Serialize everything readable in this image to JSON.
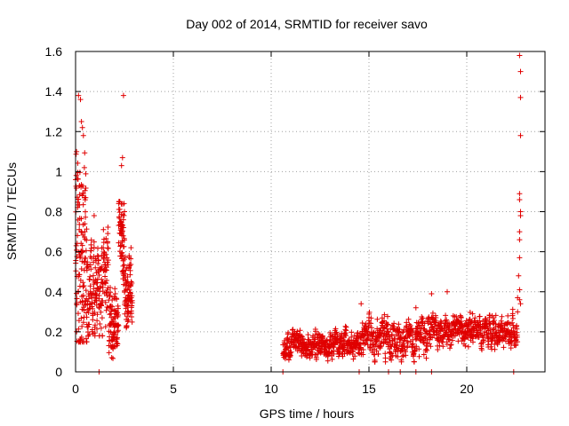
{
  "chart_data": {
    "type": "scatter",
    "title": "Day 002 of 2014, SRMTID for receiver savo",
    "xlabel": "GPS time / hours",
    "ylabel": "SRMTID / TECUs",
    "xlim": [
      0,
      24
    ],
    "ylim": [
      0,
      1.6
    ],
    "grid": true,
    "marker": "+",
    "marker_color": "#e00000",
    "xticks": [
      0,
      5,
      10,
      15,
      20
    ],
    "xtick_labels": [
      "0",
      "5",
      "10",
      "15",
      "20"
    ],
    "yticks": [
      0,
      0.2,
      0.4,
      0.6,
      0.8,
      1.0,
      1.2,
      1.4,
      1.6
    ],
    "ytick_labels": [
      "0",
      "0.2",
      "0.4",
      "0.6",
      "0.8",
      "1",
      "1.2",
      "1.4",
      "1.6"
    ],
    "seed": 2014,
    "segments": [
      {
        "x_start": 0.0,
        "x_end": 0.6,
        "n": 140,
        "base": 0.55,
        "spread": 0.45,
        "min": 0.15,
        "max": 1.38
      },
      {
        "x_start": 0.6,
        "x_end": 1.7,
        "n": 180,
        "base": 0.4,
        "spread": 0.18,
        "min": 0.18,
        "max": 0.78
      },
      {
        "x_start": 1.7,
        "x_end": 2.2,
        "n": 90,
        "base": 0.22,
        "spread": 0.12,
        "min": 0.04,
        "max": 0.55
      },
      {
        "x_start": 2.2,
        "x_end": 2.5,
        "n": 70,
        "base": 0.65,
        "spread": 0.15,
        "min": 0.35,
        "max": 0.85
      },
      {
        "x_start": 2.5,
        "x_end": 2.9,
        "n": 80,
        "base": 0.4,
        "spread": 0.15,
        "min": 0.16,
        "max": 0.62
      },
      {
        "x_start": 10.6,
        "x_end": 14.5,
        "n": 420,
        "base": 0.13,
        "spread": 0.05,
        "min": 0.05,
        "max": 0.24
      },
      {
        "x_start": 14.5,
        "x_end": 18.0,
        "n": 360,
        "base": 0.16,
        "spread": 0.07,
        "min": 0.05,
        "max": 0.32
      },
      {
        "x_start": 18.0,
        "x_end": 22.6,
        "n": 460,
        "base": 0.2,
        "spread": 0.06,
        "min": 0.06,
        "max": 0.4
      }
    ],
    "highlight_points": [
      {
        "x": 0.05,
        "y": 1.1
      },
      {
        "x": 0.15,
        "y": 1.38
      },
      {
        "x": 0.25,
        "y": 1.36
      },
      {
        "x": 0.3,
        "y": 1.25
      },
      {
        "x": 0.35,
        "y": 1.22
      },
      {
        "x": 0.4,
        "y": 1.18
      },
      {
        "x": 0.45,
        "y": 1.02
      },
      {
        "x": 0.2,
        "y": 0.93
      },
      {
        "x": 0.35,
        "y": 0.88
      },
      {
        "x": 0.95,
        "y": 0.78
      },
      {
        "x": 2.45,
        "y": 1.38
      },
      {
        "x": 2.4,
        "y": 1.07
      },
      {
        "x": 2.35,
        "y": 1.03
      },
      {
        "x": 2.5,
        "y": 0.8
      },
      {
        "x": 2.45,
        "y": 0.72
      },
      {
        "x": 22.7,
        "y": 1.58
      },
      {
        "x": 22.75,
        "y": 1.5
      },
      {
        "x": 22.75,
        "y": 1.37
      },
      {
        "x": 22.75,
        "y": 1.18
      },
      {
        "x": 22.7,
        "y": 0.89
      },
      {
        "x": 22.7,
        "y": 0.86
      },
      {
        "x": 22.75,
        "y": 0.8
      },
      {
        "x": 22.75,
        "y": 0.78
      },
      {
        "x": 22.7,
        "y": 0.7
      },
      {
        "x": 22.7,
        "y": 0.66
      },
      {
        "x": 22.7,
        "y": 0.57
      },
      {
        "x": 22.65,
        "y": 0.48
      },
      {
        "x": 22.7,
        "y": 0.41
      },
      {
        "x": 22.6,
        "y": 0.37
      },
      {
        "x": 22.7,
        "y": 0.36
      },
      {
        "x": 22.75,
        "y": 0.34
      },
      {
        "x": 22.6,
        "y": 0.3
      },
      {
        "x": 19.0,
        "y": 0.4
      },
      {
        "x": 18.2,
        "y": 0.39
      },
      {
        "x": 17.4,
        "y": 0.32
      },
      {
        "x": 14.6,
        "y": 0.34
      },
      {
        "x": 20.3,
        "y": 0.29
      },
      {
        "x": 21.3,
        "y": 0.28
      },
      {
        "x": 22.1,
        "y": 0.28
      }
    ],
    "zero_points_x": [
      1.2,
      10.6,
      14.5,
      16.0,
      16.6,
      17.4,
      18.2,
      22.4
    ]
  }
}
